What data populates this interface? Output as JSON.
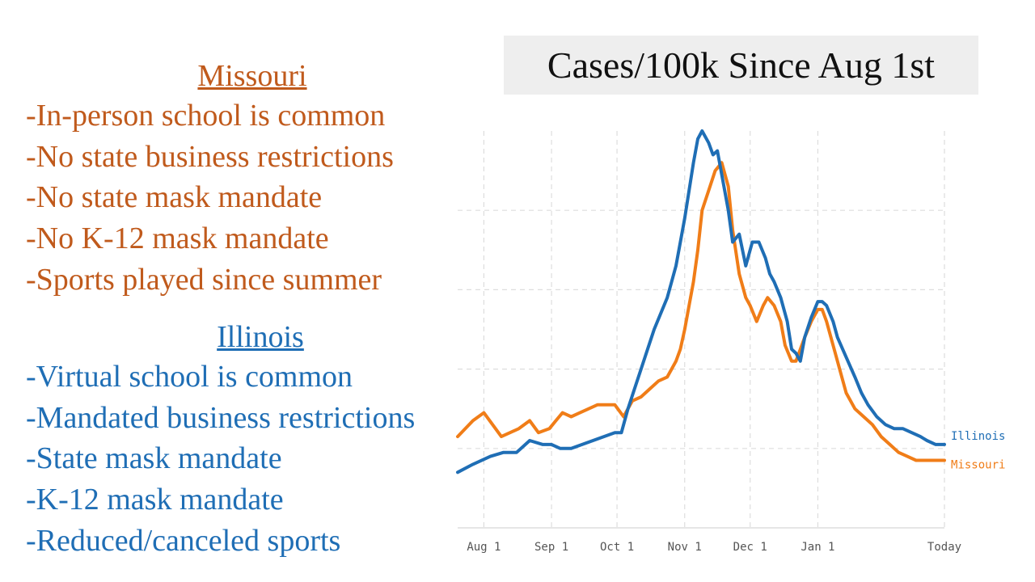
{
  "left_text": {
    "missouri": {
      "heading": "Missouri",
      "items": [
        "-In-person school is common",
        "-No state business restrictions",
        "-No state mask mandate",
        "-No K-12 mask mandate",
        "-Sports played since summer"
      ]
    },
    "illinois": {
      "heading": "Illinois",
      "items": [
        "-Virtual school is common",
        "-Mandated business restrictions",
        "-State mask mandate",
        "-K-12 mask mandate",
        "-Reduced/canceled sports"
      ]
    }
  },
  "colors": {
    "missouri": "#f07d18",
    "illinois": "#1f6eb5",
    "grid": "#dddddd"
  },
  "chart_data": {
    "type": "line",
    "title": "Cases/100k Since Aug 1st",
    "xlabel": "",
    "ylabel": "",
    "x_tick_labels": [
      "Aug 1",
      "Sep 1",
      "Oct 1",
      "Nov 1",
      "Dec 1",
      "Jan 1",
      "Today"
    ],
    "x_tick_days": [
      0,
      31,
      61,
      92,
      122,
      153,
      211
    ],
    "x_range": [
      -12,
      211
    ],
    "y_range": [
      0,
      100
    ],
    "grid": true,
    "legend": "right-end labels",
    "series": [
      {
        "name": "Illinois",
        "x": [
          -12,
          -5,
          3,
          9,
          15,
          21,
          27,
          31,
          35,
          40,
          45,
          50,
          55,
          60,
          63,
          66,
          69,
          72,
          75,
          78,
          81,
          84,
          86,
          88,
          90,
          92,
          94,
          96,
          98,
          100,
          103,
          105,
          107,
          110,
          112,
          114,
          117,
          120,
          123,
          126,
          129,
          131,
          133,
          136,
          139,
          141,
          143,
          145,
          147,
          150,
          153,
          155,
          157,
          160,
          162,
          166,
          170,
          173,
          176,
          180,
          184,
          188,
          192,
          196,
          200,
          203,
          207,
          211
        ],
        "y": [
          14,
          16,
          18,
          19,
          19,
          22,
          21,
          21,
          20,
          20,
          21,
          22,
          23,
          24,
          24,
          30,
          35,
          40,
          45,
          50,
          54,
          58,
          62,
          66,
          72,
          78,
          85,
          92,
          98,
          100,
          97,
          94,
          95,
          86,
          80,
          72,
          74,
          66,
          72,
          72,
          68,
          64,
          62,
          58,
          52,
          45,
          44,
          42,
          48,
          53,
          57,
          57,
          56,
          52,
          48,
          43,
          38,
          34,
          31,
          28,
          26,
          25,
          25,
          24,
          23,
          22,
          21,
          21
        ]
      },
      {
        "name": "Missouri",
        "x": [
          -12,
          -5,
          0,
          4,
          8,
          12,
          16,
          21,
          25,
          30,
          33,
          36,
          40,
          44,
          48,
          52,
          56,
          60,
          64,
          68,
          72,
          76,
          80,
          84,
          86,
          88,
          90,
          92,
          94,
          96,
          98,
          100,
          103,
          106,
          109,
          112,
          114,
          117,
          120,
          122,
          125,
          128,
          130,
          133,
          136,
          138,
          141,
          143,
          145,
          147,
          150,
          153,
          155,
          157,
          160,
          163,
          166,
          170,
          174,
          178,
          182,
          186,
          190,
          194,
          198,
          202,
          206,
          211
        ],
        "y": [
          23,
          27,
          29,
          26,
          23,
          24,
          25,
          27,
          24,
          25,
          27,
          29,
          28,
          29,
          30,
          31,
          31,
          31,
          28,
          32,
          33,
          35,
          37,
          38,
          40,
          42,
          45,
          50,
          56,
          62,
          70,
          80,
          85,
          90,
          92,
          86,
          75,
          64,
          58,
          56,
          52,
          56,
          58,
          56,
          52,
          46,
          42,
          42,
          45,
          48,
          52,
          55,
          55,
          52,
          46,
          40,
          34,
          30,
          28,
          26,
          23,
          21,
          19,
          18,
          17,
          17,
          17,
          17
        ]
      }
    ]
  }
}
